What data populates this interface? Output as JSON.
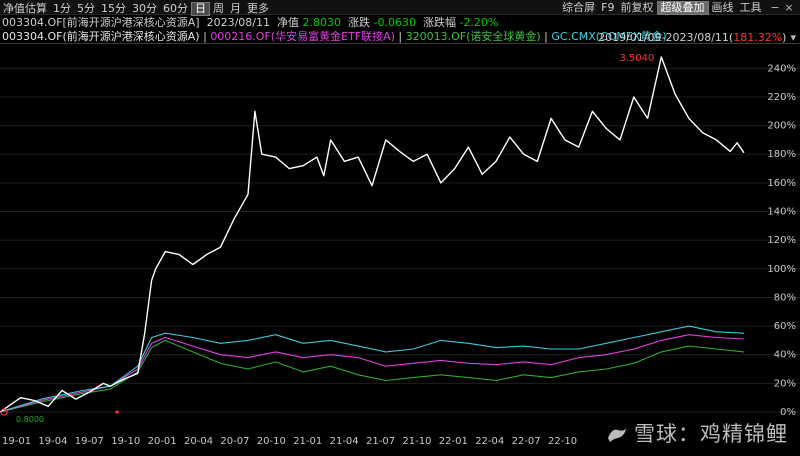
{
  "toolbar": {
    "tabs": [
      "净值估算",
      "1分",
      "5分",
      "15分",
      "30分",
      "60分",
      "日",
      "周",
      "月",
      "更多"
    ],
    "active_tab": "日",
    "right_items": [
      "综合屏",
      "F9",
      "前复权",
      "超级叠加",
      "画线",
      "工具"
    ],
    "active_right": "超级叠加"
  },
  "info": {
    "fund": "003304.OF[前海开源沪港深核心资源A]",
    "date": "2023/08/11",
    "nav_label": "净值",
    "nav_value": "2.8030",
    "chg_label": "涨跌",
    "chg_value": "-0.0630",
    "pct_label": "涨跌幅",
    "pct_value": "-2.20%"
  },
  "legend": {
    "series1": "003304.OF(前海开源沪港深核心资源A)",
    "series2": "000216.OF(华安易富黄金ETF联接A)",
    "series3": "320013.OF(诺安全球黄金)",
    "series4": "GC.CMX(COMEX黄金)",
    "range": "2019/01/09-2023/08/11(",
    "range_pct": "181.32%",
    "range_close": ")"
  },
  "chart": {
    "peak_label": "3.5040",
    "start_label": "0.8000",
    "colors": {
      "series1": "#ffffff",
      "series2": "#e040e0",
      "series3": "#2eaa2e",
      "series4": "#3fc8d8",
      "marker": "#ff3333"
    }
  },
  "chart_data": {
    "type": "line",
    "x_ticks": [
      "19-01",
      "19-04",
      "19-07",
      "19-10",
      "20-01",
      "20-04",
      "20-07",
      "20-10",
      "21-01",
      "21-04",
      "21-07",
      "21-10",
      "22-01",
      "22-04",
      "22-07",
      "22-10"
    ],
    "y_ticks": [
      "0%",
      "20%",
      "40%",
      "60%",
      "80%",
      "100%",
      "120%",
      "140%",
      "160%",
      "180%",
      "200%",
      "220%",
      "240%"
    ],
    "ylim": [
      0,
      250
    ],
    "series": [
      {
        "name": "003304.OF(前海开源沪港深核心资源A)",
        "x": [
          0,
          1.5,
          2.5,
          3.5,
          4.5,
          5.5,
          6.5,
          7.5,
          8,
          9,
          10,
          10.5,
          11,
          11.3,
          12,
          13,
          14,
          15,
          16,
          17,
          18,
          18.5,
          19,
          20,
          21,
          22,
          23,
          23.5,
          24,
          25,
          26,
          27,
          28,
          29,
          30,
          31,
          32,
          33,
          34,
          35,
          36,
          37,
          38,
          39,
          40,
          41,
          42,
          43,
          44,
          45,
          46,
          47,
          48,
          49,
          50,
          50.5,
          51,
          52,
          53,
          53.5,
          54
        ],
        "values": [
          0,
          10,
          8,
          4,
          15,
          9,
          14,
          20,
          18,
          23,
          27,
          55,
          92,
          100,
          112,
          110,
          103,
          110,
          115,
          135,
          152,
          210,
          180,
          178,
          170,
          172,
          178,
          165,
          190,
          175,
          178,
          158,
          190,
          182,
          175,
          180,
          160,
          170,
          185,
          166,
          175,
          192,
          180,
          175,
          205,
          190,
          185,
          210,
          198,
          190,
          220,
          205,
          248,
          222,
          205,
          200,
          195,
          190,
          182,
          188,
          181
        ]
      },
      {
        "name": "000216.OF(华安易富黄金ETF联接A)",
        "x": [
          0,
          3,
          6,
          8,
          10,
          11,
          12,
          14,
          16,
          18,
          20,
          22,
          24,
          26,
          28,
          30,
          32,
          34,
          36,
          38,
          40,
          42,
          44,
          46,
          48,
          50,
          52,
          54
        ],
        "values": [
          0,
          8,
          14,
          18,
          30,
          48,
          52,
          46,
          40,
          38,
          42,
          38,
          40,
          38,
          32,
          34,
          36,
          34,
          33,
          35,
          33,
          38,
          40,
          44,
          50,
          54,
          52,
          51
        ]
      },
      {
        "name": "320013.OF(诺安全球黄金)",
        "x": [
          0,
          3,
          6,
          8,
          10,
          11,
          12,
          14,
          16,
          18,
          20,
          22,
          24,
          26,
          28,
          30,
          32,
          34,
          36,
          38,
          40,
          42,
          44,
          46,
          48,
          50,
          52,
          54
        ],
        "values": [
          0,
          7,
          13,
          16,
          28,
          45,
          50,
          42,
          34,
          30,
          35,
          28,
          32,
          26,
          22,
          24,
          26,
          24,
          22,
          26,
          24,
          28,
          30,
          34,
          42,
          46,
          44,
          42
        ]
      },
      {
        "name": "GC.CMX(COMEX黄金)",
        "x": [
          0,
          3,
          6,
          8,
          10,
          11,
          12,
          14,
          16,
          18,
          20,
          22,
          24,
          26,
          28,
          30,
          32,
          34,
          36,
          38,
          40,
          42,
          44,
          46,
          48,
          50,
          52,
          54
        ],
        "values": [
          0,
          9,
          15,
          18,
          32,
          52,
          55,
          52,
          48,
          50,
          54,
          48,
          50,
          46,
          42,
          44,
          50,
          48,
          45,
          46,
          44,
          44,
          48,
          52,
          56,
          60,
          56,
          55
        ]
      }
    ]
  },
  "watermark": "雪球：鸡精锦鲤"
}
